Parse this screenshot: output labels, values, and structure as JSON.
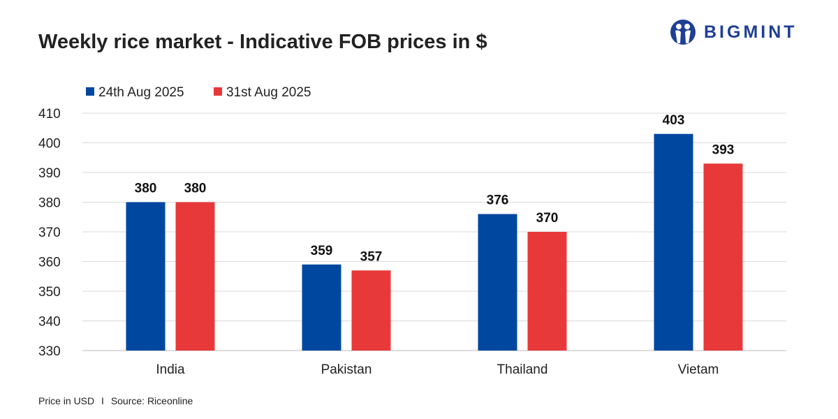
{
  "header": {
    "title": "Weekly rice market - Indicative FOB prices in $"
  },
  "logo": {
    "text": "BIGMINT",
    "color": "#1f3f94"
  },
  "footer": {
    "note": "Price in USD",
    "separator": "I",
    "source": "Source: Riceonline"
  },
  "chart_data": {
    "type": "bar",
    "title": "Weekly rice market - Indicative FOB prices in $",
    "categories": [
      "India",
      "Pakistan",
      "Thailand",
      "Vietam"
    ],
    "series": [
      {
        "name": "24th Aug 2025",
        "color": "#0047a0",
        "values": [
          380,
          359,
          376,
          403
        ]
      },
      {
        "name": "31st Aug 2025",
        "color": "#e8393a",
        "values": [
          380,
          357,
          370,
          393
        ]
      }
    ],
    "ylim": [
      330,
      410
    ],
    "yticks": [
      330,
      340,
      350,
      360,
      370,
      380,
      390,
      400,
      410
    ],
    "grid": true,
    "legend": "top-left",
    "data_labels": true,
    "xlabel": "",
    "ylabel": ""
  }
}
